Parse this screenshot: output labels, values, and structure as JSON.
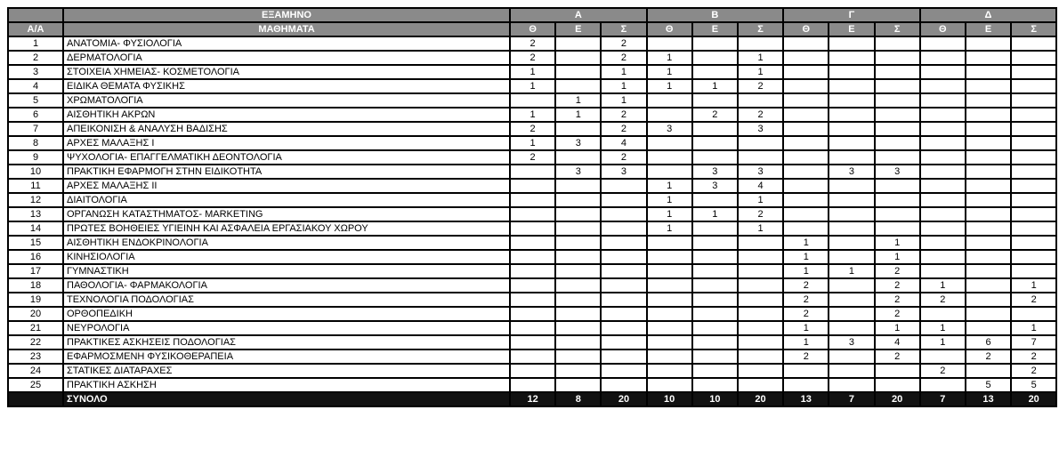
{
  "header": {
    "semester_label": "ΕΞΑΜΗΝΟ",
    "aa_label": "Α/Α",
    "subjects_label": "ΜΑΘΗΜΑΤΑ",
    "semesters": [
      "Α",
      "Β",
      "Γ",
      "Δ"
    ],
    "subcolumns": [
      "Θ",
      "Ε",
      "Σ"
    ]
  },
  "rows": [
    {
      "n": "1",
      "name": "ΑΝΑΤΟΜΙΑ- ΦΥΣΙΟΛΟΓΙΑ",
      "v": [
        "2",
        "",
        "2",
        "",
        "",
        "",
        "",
        "",
        "",
        "",
        "",
        ""
      ]
    },
    {
      "n": "2",
      "name": "ΔΕΡΜΑΤΟΛΟΓΙΑ",
      "v": [
        "2",
        "",
        "2",
        "1",
        "",
        "1",
        "",
        "",
        "",
        "",
        "",
        ""
      ]
    },
    {
      "n": "3",
      "name": "ΣΤΟΙΧΕΙΑ ΧΗΜΕΙΑΣ- ΚΟΣΜΕΤΟΛΟΓΙΑ",
      "v": [
        "1",
        "",
        "1",
        "1",
        "",
        "1",
        "",
        "",
        "",
        "",
        "",
        ""
      ]
    },
    {
      "n": "4",
      "name": "ΕΙΔΙΚΑ ΘΕΜΑΤΑ ΦΥΣΙΚΗΣ",
      "v": [
        "1",
        "",
        "1",
        "1",
        "1",
        "2",
        "",
        "",
        "",
        "",
        "",
        ""
      ]
    },
    {
      "n": "5",
      "name": "ΧΡΩΜΑΤΟΛΟΓΙΑ",
      "v": [
        "",
        "1",
        "1",
        "",
        "",
        "",
        "",
        "",
        "",
        "",
        "",
        ""
      ]
    },
    {
      "n": "6",
      "name": "ΑΙΣΘΗΤΙΚΗ ΑΚΡΩΝ",
      "v": [
        "1",
        "1",
        "2",
        "",
        "2",
        "2",
        "",
        "",
        "",
        "",
        "",
        ""
      ]
    },
    {
      "n": "7",
      "name": "ΑΠΕΙΚΟΝΙΣΗ & ΑΝΑΛΥΣΗ ΒΑΔΙΣΗΣ",
      "v": [
        "2",
        "",
        "2",
        "3",
        "",
        "3",
        "",
        "",
        "",
        "",
        "",
        ""
      ]
    },
    {
      "n": "8",
      "name": "ΑΡΧΕΣ ΜΑΛΑΞΗΣ Ι",
      "v": [
        "1",
        "3",
        "4",
        "",
        "",
        "",
        "",
        "",
        "",
        "",
        "",
        ""
      ]
    },
    {
      "n": "9",
      "name": "ΨΥΧΟΛΟΓΙΑ- ΕΠΑΓΓΕΛΜΑΤΙΚΗ ΔΕΟΝΤΟΛΟΓΙΑ",
      "v": [
        "2",
        "",
        "2",
        "",
        "",
        "",
        "",
        "",
        "",
        "",
        "",
        ""
      ]
    },
    {
      "n": "10",
      "name": "ΠΡΑΚΤΙΚΗ ΕΦΑΡΜΟΓΗ ΣΤΗΝ ΕΙΔΙΚΟΤΗΤΑ",
      "v": [
        "",
        "3",
        "3",
        "",
        "3",
        "3",
        "",
        "3",
        "3",
        "",
        "",
        ""
      ]
    },
    {
      "n": "11",
      "name": "ΑΡΧΕΣ ΜΑΛΑΞΗΣ ΙΙ",
      "v": [
        "",
        "",
        "",
        "1",
        "3",
        "4",
        "",
        "",
        "",
        "",
        "",
        ""
      ]
    },
    {
      "n": "12",
      "name": "ΔΙΑΙΤΟΛΟΓΙΑ",
      "v": [
        "",
        "",
        "",
        "1",
        "",
        "1",
        "",
        "",
        "",
        "",
        "",
        ""
      ]
    },
    {
      "n": "13",
      "name": "ΟΡΓΑΝΩΣΗ ΚΑΤΑΣΤΗΜΑΤΟΣ- MARKETING",
      "v": [
        "",
        "",
        "",
        "1",
        "1",
        "2",
        "",
        "",
        "",
        "",
        "",
        ""
      ]
    },
    {
      "n": "14",
      "name": "ΠΡΩΤΕΣ ΒΟΗΘΕΙΕΣ ΥΓΙΕΙΝΗ ΚΑΙ ΑΣΦΑΛΕΙΑ ΕΡΓΑΣΙΑΚΟΥ ΧΩΡΟΥ",
      "v": [
        "",
        "",
        "",
        "1",
        "",
        "1",
        "",
        "",
        "",
        "",
        "",
        ""
      ]
    },
    {
      "n": "15",
      "name": "ΑΙΣΘΗΤΙΚΗ ΕΝΔΟΚΡΙΝΟΛΟΓΙΑ",
      "v": [
        "",
        "",
        "",
        "",
        "",
        "",
        "1",
        "",
        "1",
        "",
        "",
        ""
      ]
    },
    {
      "n": "16",
      "name": "ΚΙΝΗΣΙΟΛΟΓΙΑ",
      "v": [
        "",
        "",
        "",
        "",
        "",
        "",
        "1",
        "",
        "1",
        "",
        "",
        ""
      ]
    },
    {
      "n": "17",
      "name": "ΓΥΜΝΑΣΤΙΚΗ",
      "v": [
        "",
        "",
        "",
        "",
        "",
        "",
        "1",
        "1",
        "2",
        "",
        "",
        ""
      ]
    },
    {
      "n": "18",
      "name": "ΠΑΘΟΛΟΓΙΑ- ΦΑΡΜΑΚΟΛΟΓΙΑ",
      "v": [
        "",
        "",
        "",
        "",
        "",
        "",
        "2",
        "",
        "2",
        "1",
        "",
        "1"
      ]
    },
    {
      "n": "19",
      "name": "ΤΕΧΝΟΛΟΓΙΑ ΠΟΔΟΛΟΓΙΑΣ",
      "v": [
        "",
        "",
        "",
        "",
        "",
        "",
        "2",
        "",
        "2",
        "2",
        "",
        "2"
      ]
    },
    {
      "n": "20",
      "name": "ΟΡΘΟΠΕΔΙΚΗ",
      "v": [
        "",
        "",
        "",
        "",
        "",
        "",
        "2",
        "",
        "2",
        "",
        "",
        ""
      ]
    },
    {
      "n": "21",
      "name": "ΝΕΥΡΟΛΟΓΙΑ",
      "v": [
        "",
        "",
        "",
        "",
        "",
        "",
        "1",
        "",
        "1",
        "1",
        "",
        "1"
      ]
    },
    {
      "n": "22",
      "name": "ΠΡΑΚΤΙΚΕΣ ΑΣΚΗΣΕΙΣ ΠΟΔΟΛΟΓΙΑΣ",
      "v": [
        "",
        "",
        "",
        "",
        "",
        "",
        "1",
        "3",
        "4",
        "1",
        "6",
        "7"
      ]
    },
    {
      "n": "23",
      "name": "ΕΦΑΡΜΟΣΜΕΝΗ ΦΥΣΙΚΟΘΕΡΑΠΕΙΑ",
      "v": [
        "",
        "",
        "",
        "",
        "",
        "",
        "2",
        "",
        "2",
        "",
        "2",
        "2"
      ]
    },
    {
      "n": "24",
      "name": "ΣΤΑΤΙΚΕΣ ΔΙΑΤΑΡΑΧΕΣ",
      "v": [
        "",
        "",
        "",
        "",
        "",
        "",
        "",
        "",
        "",
        "2",
        "",
        "2"
      ]
    },
    {
      "n": "25",
      "name": "ΠΡΑΚΤΙΚΗ ΑΣΚΗΣΗ",
      "v": [
        "",
        "",
        "",
        "",
        "",
        "",
        "",
        "",
        "",
        "",
        "5",
        "5"
      ]
    }
  ],
  "total": {
    "label": "ΣΥΝΟΛΟ",
    "v": [
      "12",
      "8",
      "20",
      "10",
      "10",
      "20",
      "13",
      "7",
      "20",
      "7",
      "13",
      "20"
    ]
  }
}
